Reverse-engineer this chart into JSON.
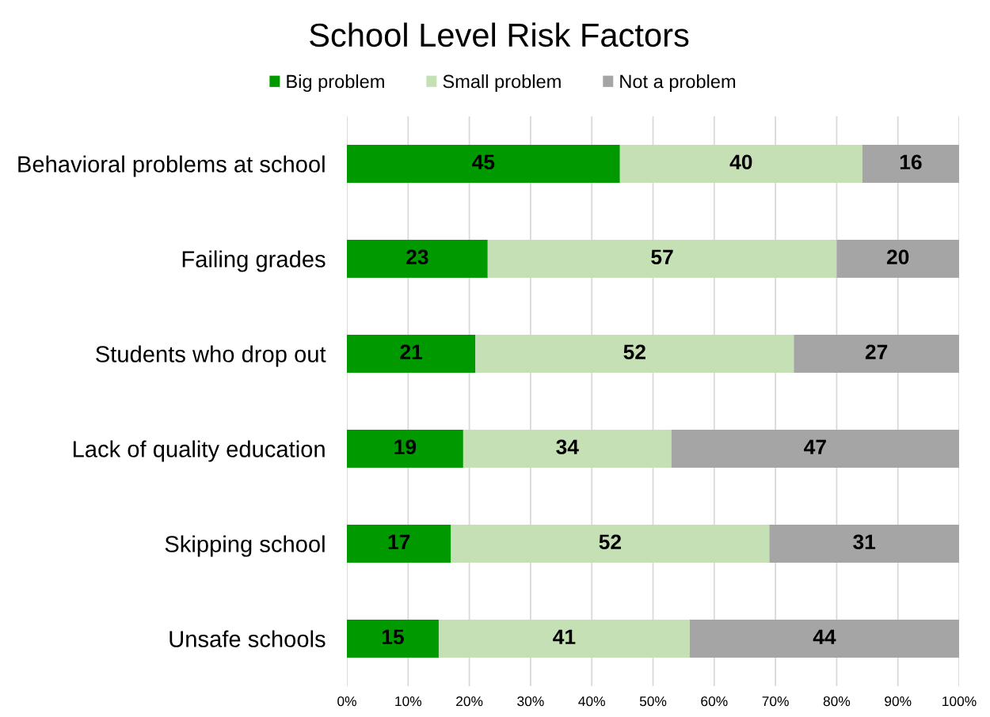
{
  "chart_data": {
    "type": "bar",
    "orientation": "horizontal",
    "stacked": true,
    "title": "School Level Risk Factors",
    "categories": [
      "Behavioral problems at school",
      "Failing grades",
      "Students who drop out",
      "Lack of quality education",
      "Skipping school",
      "Unsafe schools"
    ],
    "series": [
      {
        "name": "Big problem",
        "color": "#009900",
        "values": [
          44.6,
          23,
          21,
          19,
          17,
          15
        ],
        "value_labels": [
          "45",
          "23",
          "21",
          "19",
          "17",
          "15"
        ]
      },
      {
        "name": "Small problem",
        "color": "#c5e0b4",
        "values": [
          39.6,
          57,
          52,
          34,
          52,
          41
        ],
        "value_labels": [
          "40",
          "57",
          "52",
          "34",
          "52",
          "41"
        ]
      },
      {
        "name": "Not a problem",
        "color": "#a5a5a5",
        "values": [
          15.8,
          20,
          27,
          47,
          31,
          44
        ],
        "value_labels": [
          "16",
          "20",
          "27",
          "47",
          "31",
          "44"
        ]
      }
    ],
    "xlim": [
      0,
      100
    ],
    "xticks": [
      {
        "value": 0,
        "label": "0%"
      },
      {
        "value": 10,
        "label": "10%"
      },
      {
        "value": 20,
        "label": "20%"
      },
      {
        "value": 30,
        "label": "30%"
      },
      {
        "value": 40,
        "label": "40%"
      },
      {
        "value": 50,
        "label": "50%"
      },
      {
        "value": 60,
        "label": "60%"
      },
      {
        "value": 70,
        "label": "70%"
      },
      {
        "value": 80,
        "label": "80%"
      },
      {
        "value": 90,
        "label": "90%"
      },
      {
        "value": 100,
        "label": "100%"
      }
    ],
    "grid": "x",
    "legend": "top"
  }
}
